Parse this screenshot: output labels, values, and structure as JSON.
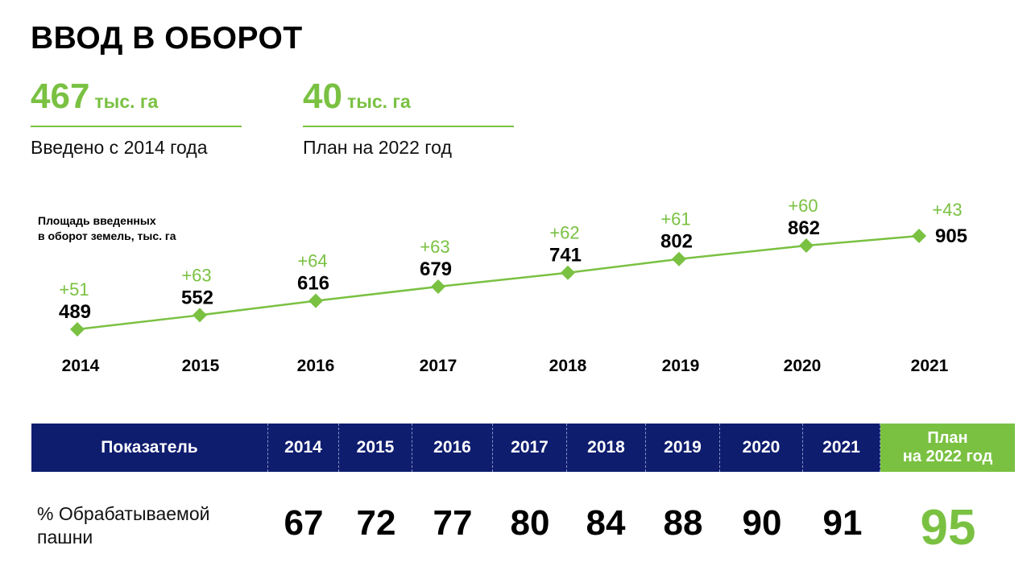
{
  "title": "ВВОД В ОБОРОТ",
  "kpis": [
    {
      "value": "467",
      "unit": "тыс. га",
      "label": "Введено с 2014 года"
    },
    {
      "value": "40",
      "unit": "тыс. га",
      "label": "План на 2022 год"
    }
  ],
  "chart_label": {
    "line1": "Площадь введенных",
    "line2": "в оборот земель, тыс. га"
  },
  "colors": {
    "accent": "#7ac142",
    "header_bg": "#0f1d6f"
  },
  "chart_data": {
    "type": "line",
    "x": [
      "2014",
      "2015",
      "2016",
      "2017",
      "2018",
      "2019",
      "2020",
      "2021"
    ],
    "series": [
      {
        "values": [
          489,
          552,
          616,
          679,
          741,
          802,
          862,
          905
        ],
        "increments": [
          "+51",
          "+63",
          "+64",
          "+63",
          "+62",
          "+61",
          "+60",
          "+43"
        ]
      }
    ],
    "title": "",
    "xlabel": "",
    "ylabel": "Площадь введенных в оборот земель, тыс. га",
    "grid": false,
    "legend": "none"
  },
  "table": {
    "header_label": "Показатель",
    "years": [
      "2014",
      "2015",
      "2016",
      "2017",
      "2018",
      "2019",
      "2020",
      "2021"
    ],
    "plan_line1": "План",
    "plan_line2": "на 2022 год",
    "row_label_line1": "% Обрабатываемой",
    "row_label_line2": "пашни",
    "values": [
      "67",
      "72",
      "77",
      "80",
      "84",
      "88",
      "90",
      "91"
    ],
    "plan_value": "95"
  }
}
